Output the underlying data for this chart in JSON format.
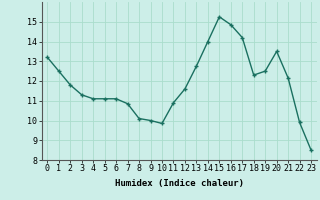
{
  "x": [
    0,
    1,
    2,
    3,
    4,
    5,
    6,
    7,
    8,
    9,
    10,
    11,
    12,
    13,
    14,
    15,
    16,
    17,
    18,
    19,
    20,
    21,
    22,
    23
  ],
  "y": [
    13.2,
    12.5,
    11.8,
    11.3,
    11.1,
    11.1,
    11.1,
    10.85,
    10.1,
    10.0,
    9.85,
    10.9,
    11.6,
    12.75,
    14.0,
    15.25,
    14.85,
    14.2,
    12.3,
    12.5,
    13.5,
    12.15,
    9.9,
    8.5
  ],
  "line_color": "#1a7060",
  "marker": "+",
  "markersize": 3.5,
  "linewidth": 1.0,
  "bg_color": "#cceee8",
  "grid_color": "#aaddcc",
  "xlabel": "Humidex (Indice chaleur)",
  "xlim": [
    -0.5,
    23.5
  ],
  "ylim": [
    8,
    16
  ],
  "yticks": [
    8,
    9,
    10,
    11,
    12,
    13,
    14,
    15
  ],
  "xticks": [
    0,
    1,
    2,
    3,
    4,
    5,
    6,
    7,
    8,
    9,
    10,
    11,
    12,
    13,
    14,
    15,
    16,
    17,
    18,
    19,
    20,
    21,
    22,
    23
  ],
  "xlabel_fontsize": 6.5,
  "tick_fontsize": 6.0
}
